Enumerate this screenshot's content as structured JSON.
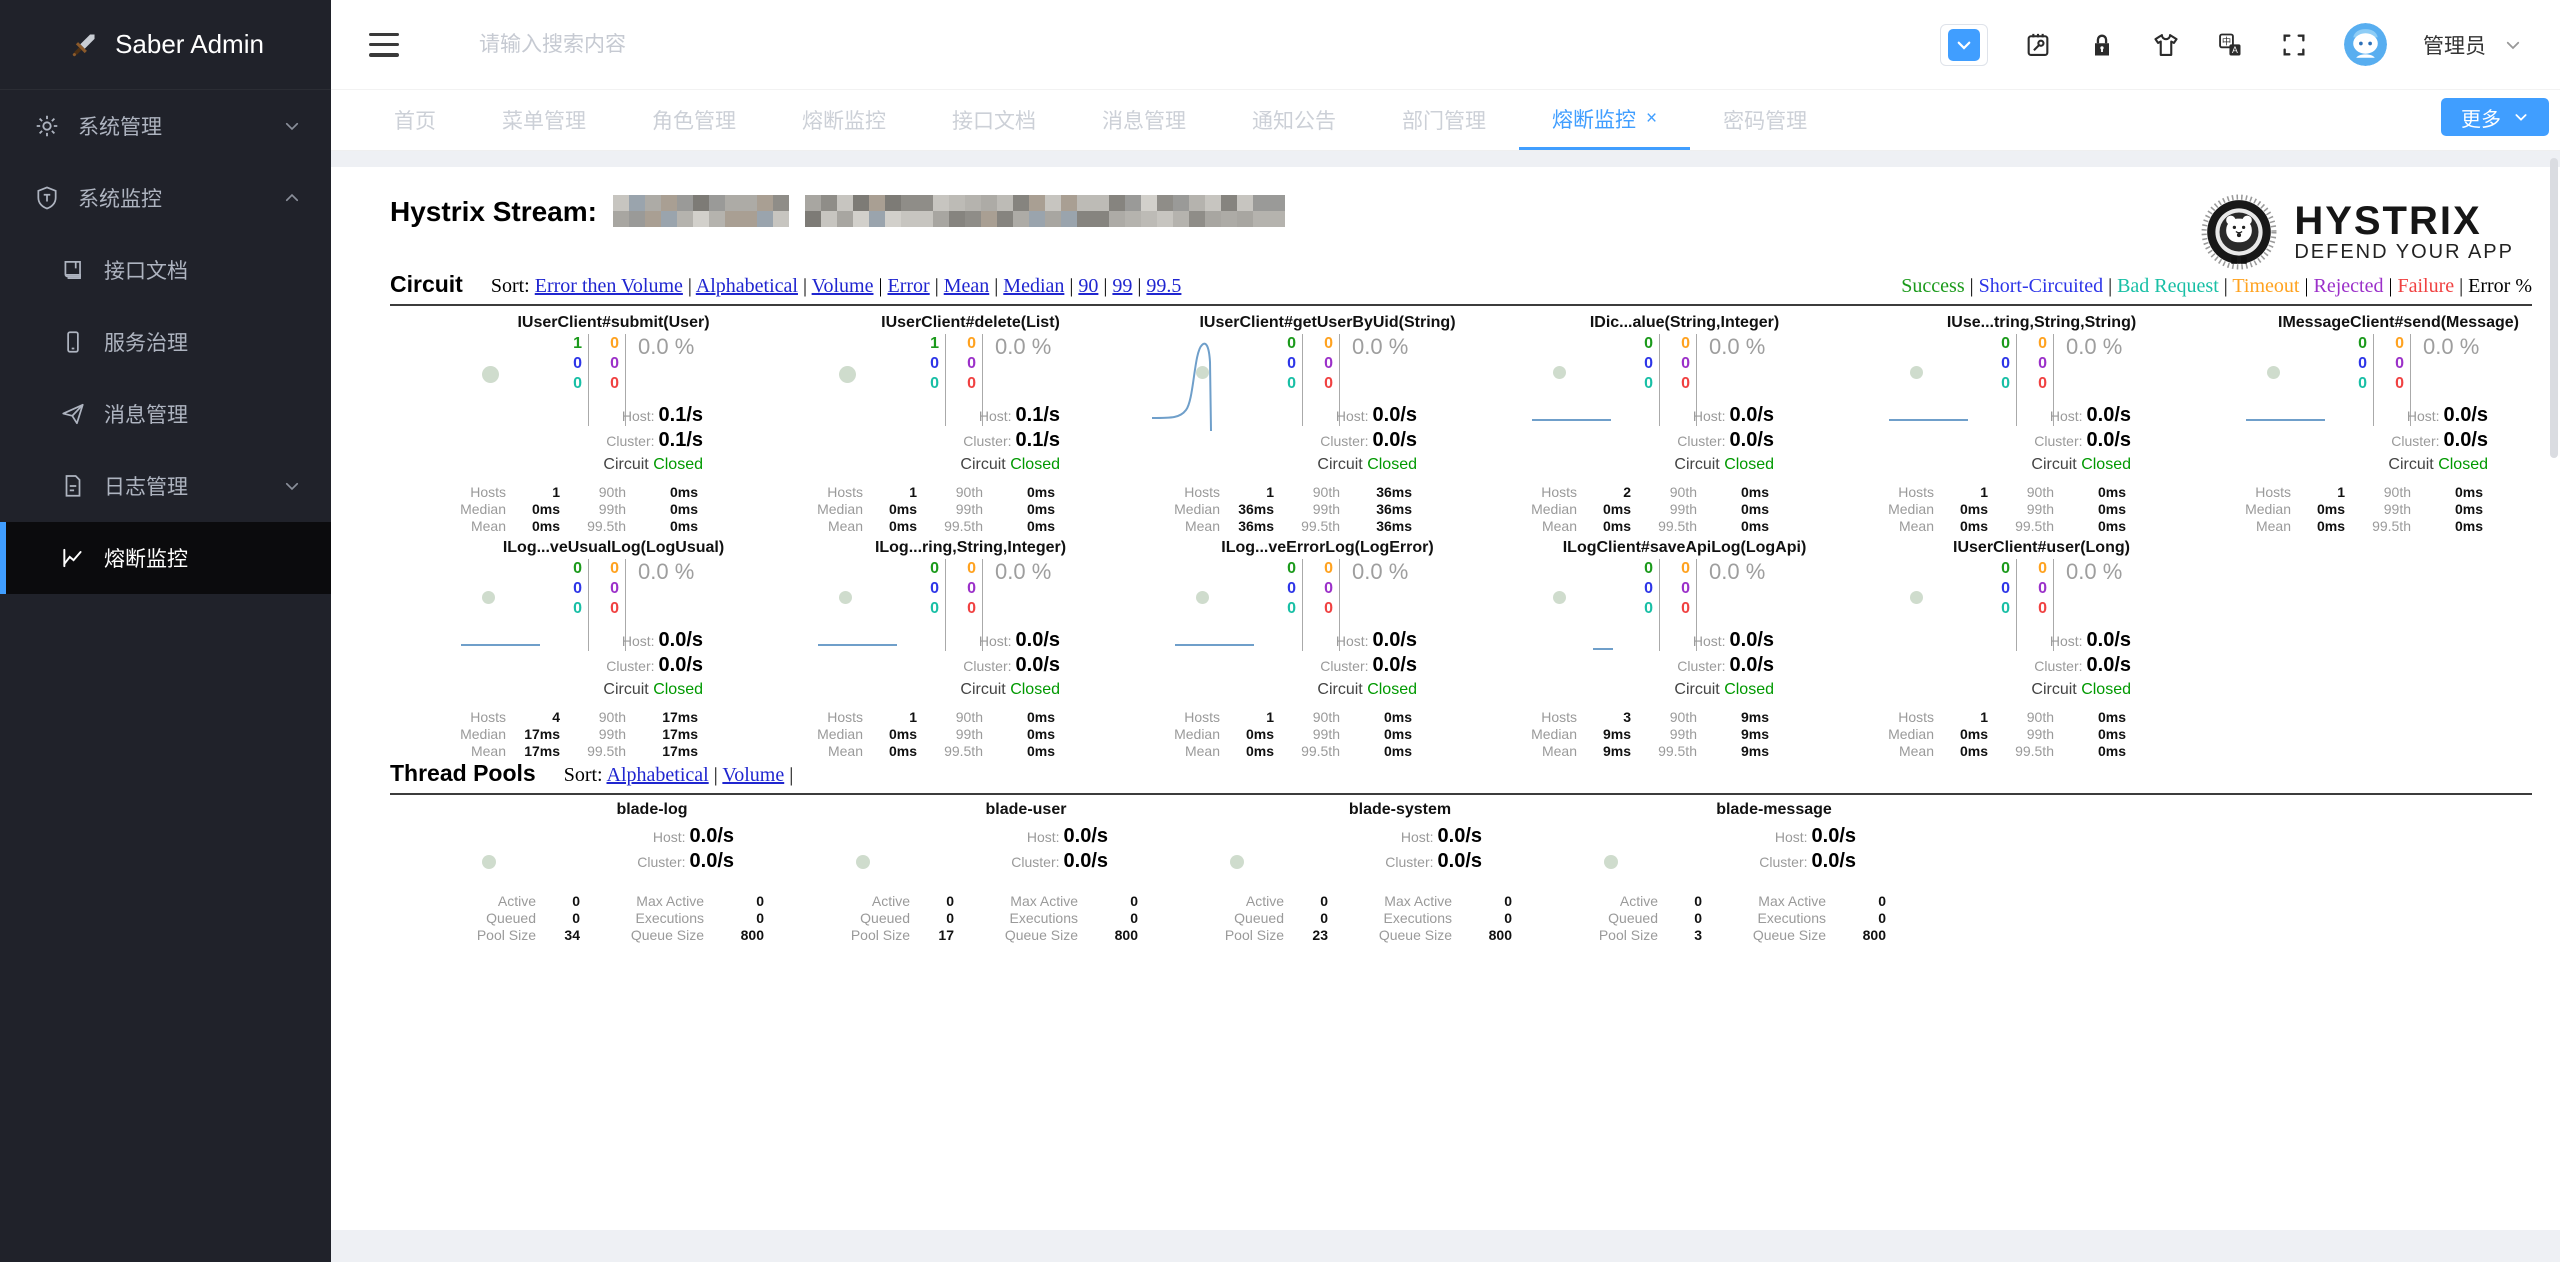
{
  "sidebar": {
    "logo": {
      "icon": "sword-icon",
      "title": "Saber Admin"
    },
    "items": [
      {
        "key": "system-management",
        "label": "系统管理",
        "icon": "gear-icon",
        "level": 1,
        "chevron": "down"
      },
      {
        "key": "system-monitor",
        "label": "系统监控",
        "icon": "shield-icon",
        "level": 1,
        "chevron": "up"
      },
      {
        "key": "api-doc",
        "label": "接口文档",
        "icon": "book-icon",
        "level": 2
      },
      {
        "key": "service-governance",
        "label": "服务治理",
        "icon": "phone-icon",
        "level": 2
      },
      {
        "key": "message-management",
        "label": "消息管理",
        "icon": "send-icon",
        "level": 2
      },
      {
        "key": "log-management",
        "label": "日志管理",
        "icon": "document-icon",
        "level": 2,
        "chevron": "down"
      },
      {
        "key": "circuit-monitor",
        "label": "熔断监控",
        "icon": "chart-icon",
        "level": 2,
        "active": true
      }
    ]
  },
  "header": {
    "search_placeholder": "请输入搜索内容",
    "icons": [
      "dropdown-button",
      "clipboard-icon",
      "lock-icon",
      "theme-icon",
      "language-icon",
      "fullscreen-icon"
    ],
    "user": "管理员"
  },
  "tabs": {
    "items": [
      "首页",
      "菜单管理",
      "角色管理",
      "熔断监控",
      "接口文档",
      "消息管理",
      "通知公告",
      "部门管理",
      "熔断监控",
      "密码管理"
    ],
    "active_index": 8,
    "close_glyph": "×",
    "more_label": "更多"
  },
  "dashboard": {
    "stream_label": "Hystrix Stream:",
    "stream_url_redacted": true,
    "logo": {
      "title": "HYSTRIX",
      "subtitle": "DEFEND YOUR APP"
    },
    "labels": {
      "sort": "Sort:",
      "host": "Host:",
      "cluster": "Cluster:",
      "circuit": "Circuit",
      "hosts": "Hosts",
      "median": "Median",
      "mean": "Mean",
      "p90": "90th",
      "p99": "99th",
      "p995": "99.5th",
      "active": "Active",
      "queued": "Queued",
      "pool_size": "Pool Size",
      "max_active": "Max Active",
      "executions": "Executions",
      "queue_size": "Queue Size"
    },
    "circuit_section": {
      "heading": "Circuit",
      "sort_links": [
        "Error then Volume",
        "Alphabetical",
        "Volume",
        "Error",
        "Mean",
        "Median",
        "90",
        "99",
        "99.5"
      ],
      "legend": [
        {
          "label": "Success",
          "color": "#1b9a1b"
        },
        {
          "label": "Short-Circuited",
          "color": "#2d35e8"
        },
        {
          "label": "Bad Request",
          "color": "#18bfa5"
        },
        {
          "label": "Timeout",
          "color": "#ffa21f"
        },
        {
          "label": "Rejected",
          "color": "#9b30c9"
        },
        {
          "label": "Failure",
          "color": "#f04141"
        },
        {
          "label": "Error %",
          "color": "#000000"
        }
      ]
    },
    "circuits": [
      {
        "name": "IUserClient#submit(User)",
        "counts": [
          "1",
          "0",
          "0",
          "0",
          "0",
          "0"
        ],
        "percent": "0.0 %",
        "host": "0.1/s",
        "cluster": "0.1/s",
        "state": "Closed",
        "hosts": "1",
        "median": "0ms",
        "mean": "0ms",
        "p90": "0ms",
        "p99": "0ms",
        "p995": "0ms",
        "spark": "none",
        "dot": 17
      },
      {
        "name": "IUserClient#delete(List)",
        "counts": [
          "1",
          "0",
          "0",
          "0",
          "0",
          "0"
        ],
        "percent": "0.0 %",
        "host": "0.1/s",
        "cluster": "0.1/s",
        "state": "Closed",
        "hosts": "1",
        "median": "0ms",
        "mean": "0ms",
        "p90": "0ms",
        "p99": "0ms",
        "p995": "0ms",
        "spark": "none",
        "dot": 17
      },
      {
        "name": "IUserClient#getUserByUid(String)",
        "counts": [
          "0",
          "0",
          "0",
          "0",
          "0",
          "0"
        ],
        "percent": "0.0 %",
        "host": "0.0/s",
        "cluster": "0.0/s",
        "state": "Closed",
        "hosts": "1",
        "median": "36ms",
        "mean": "36ms",
        "p90": "36ms",
        "p99": "36ms",
        "p995": "36ms",
        "spark": "bump",
        "dot": 13
      },
      {
        "name": "IDic...alue(String,Integer)",
        "counts": [
          "0",
          "0",
          "0",
          "0",
          "0",
          "0"
        ],
        "percent": "0.0 %",
        "host": "0.0/s",
        "cluster": "0.0/s",
        "state": "Closed",
        "hosts": "2",
        "median": "0ms",
        "mean": "0ms",
        "p90": "0ms",
        "p99": "0ms",
        "p995": "0ms",
        "spark": "flat",
        "dot": 13
      },
      {
        "name": "IUse...tring,String,String)",
        "counts": [
          "0",
          "0",
          "0",
          "0",
          "0",
          "0"
        ],
        "percent": "0.0 %",
        "host": "0.0/s",
        "cluster": "0.0/s",
        "state": "Closed",
        "hosts": "1",
        "median": "0ms",
        "mean": "0ms",
        "p90": "0ms",
        "p99": "0ms",
        "p995": "0ms",
        "spark": "flat",
        "dot": 13
      },
      {
        "name": "IMessageClient#send(Message)",
        "counts": [
          "0",
          "0",
          "0",
          "0",
          "0",
          "0"
        ],
        "percent": "0.0 %",
        "host": "0.0/s",
        "cluster": "0.0/s",
        "state": "Closed",
        "hosts": "1",
        "median": "0ms",
        "mean": "0ms",
        "p90": "0ms",
        "p99": "0ms",
        "p995": "0ms",
        "spark": "flat",
        "dot": 13
      },
      {
        "name": "ILog...veUsualLog(LogUsual)",
        "counts": [
          "0",
          "0",
          "0",
          "0",
          "0",
          "0"
        ],
        "percent": "0.0 %",
        "host": "0.0/s",
        "cluster": "0.0/s",
        "state": "Closed",
        "hosts": "4",
        "median": "17ms",
        "mean": "17ms",
        "p90": "17ms",
        "p99": "17ms",
        "p995": "17ms",
        "spark": "flat",
        "dot": 13
      },
      {
        "name": "ILog...ring,String,Integer)",
        "counts": [
          "0",
          "0",
          "0",
          "0",
          "0",
          "0"
        ],
        "percent": "0.0 %",
        "host": "0.0/s",
        "cluster": "0.0/s",
        "state": "Closed",
        "hosts": "1",
        "median": "0ms",
        "mean": "0ms",
        "p90": "0ms",
        "p99": "0ms",
        "p995": "0ms",
        "spark": "flat",
        "dot": 13
      },
      {
        "name": "ILog...veErrorLog(LogError)",
        "counts": [
          "0",
          "0",
          "0",
          "0",
          "0",
          "0"
        ],
        "percent": "0.0 %",
        "host": "0.0/s",
        "cluster": "0.0/s",
        "state": "Closed",
        "hosts": "1",
        "median": "0ms",
        "mean": "0ms",
        "p90": "0ms",
        "p99": "0ms",
        "p995": "0ms",
        "spark": "flat",
        "dot": 13
      },
      {
        "name": "ILogClient#saveApiLog(LogApi)",
        "counts": [
          "0",
          "0",
          "0",
          "0",
          "0",
          "0"
        ],
        "percent": "0.0 %",
        "host": "0.0/s",
        "cluster": "0.0/s",
        "state": "Closed",
        "hosts": "3",
        "median": "9ms",
        "mean": "9ms",
        "p90": "9ms",
        "p99": "9ms",
        "p995": "9ms",
        "spark": "tiny",
        "dot": 13
      },
      {
        "name": "IUserClient#user(Long)",
        "counts": [
          "0",
          "0",
          "0",
          "0",
          "0",
          "0"
        ],
        "percent": "0.0 %",
        "host": "0.0/s",
        "cluster": "0.0/s",
        "state": "Closed",
        "hosts": "1",
        "median": "0ms",
        "mean": "0ms",
        "p90": "0ms",
        "p99": "0ms",
        "p995": "0ms",
        "spark": "none",
        "dot": 13
      }
    ],
    "thread_pools": {
      "heading": "Thread Pools",
      "sort_links": [
        "Alphabetical",
        "Volume"
      ],
      "trailing_separator": true,
      "pools": [
        {
          "name": "blade-log",
          "host": "0.0/s",
          "cluster": "0.0/s",
          "active": "0",
          "queued": "0",
          "pool_size": "34",
          "max_active": "0",
          "executions": "0",
          "queue_size": "800"
        },
        {
          "name": "blade-user",
          "host": "0.0/s",
          "cluster": "0.0/s",
          "active": "0",
          "queued": "0",
          "pool_size": "17",
          "max_active": "0",
          "executions": "0",
          "queue_size": "800"
        },
        {
          "name": "blade-system",
          "host": "0.0/s",
          "cluster": "0.0/s",
          "active": "0",
          "queued": "0",
          "pool_size": "23",
          "max_active": "0",
          "executions": "0",
          "queue_size": "800"
        },
        {
          "name": "blade-message",
          "host": "0.0/s",
          "cluster": "0.0/s",
          "active": "0",
          "queued": "0",
          "pool_size": "3",
          "max_active": "0",
          "executions": "0",
          "queue_size": "800"
        }
      ]
    }
  },
  "colors": {
    "accent": "#409eff",
    "sidebar_bg": "#20222a",
    "circuit_closed": "#009900",
    "link": "#2026d0"
  }
}
